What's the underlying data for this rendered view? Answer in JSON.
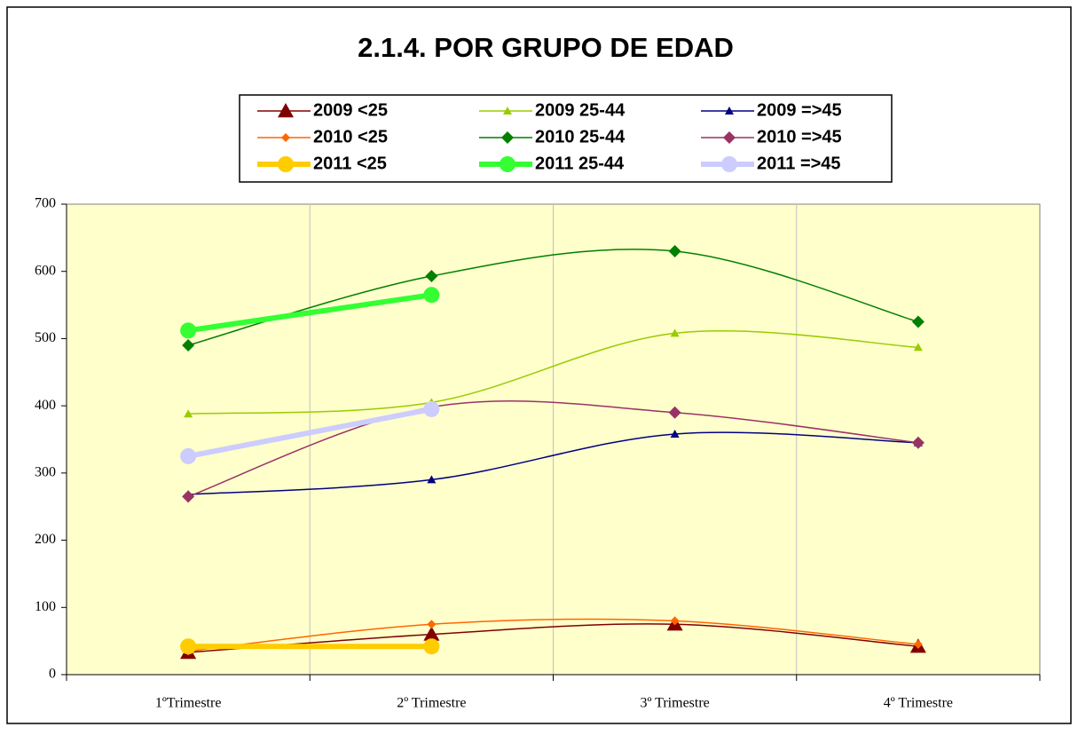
{
  "chart_data": {
    "type": "line",
    "title": "2.1.4. POR GRUPO DE EDAD",
    "categories": [
      "1ºTrimestre",
      "2º Trimestre",
      "3º Trimestre",
      "4º Trimestre"
    ],
    "series": [
      {
        "name": "2009 <25",
        "color": "#800000",
        "marker": "triangle",
        "values": [
          33,
          60,
          75,
          42
        ]
      },
      {
        "name": "2009 25-44",
        "color": "#99cc00",
        "marker": "small-triangle",
        "values": [
          388,
          405,
          508,
          487
        ]
      },
      {
        "name": "2009 =>45",
        "color": "#000080",
        "marker": "small-triangle",
        "values": [
          268,
          290,
          358,
          345
        ]
      },
      {
        "name": "2010 <25",
        "color": "#ff6600",
        "marker": "small-diamond",
        "values": [
          35,
          75,
          80,
          45
        ]
      },
      {
        "name": "2010 25-44",
        "color": "#008000",
        "marker": "diamond",
        "values": [
          490,
          593,
          630,
          525
        ]
      },
      {
        "name": "2010 =>45",
        "color": "#993366",
        "marker": "diamond",
        "values": [
          265,
          398,
          390,
          345
        ]
      },
      {
        "name": "2011 <25",
        "color": "#ffcc00",
        "marker": "circle",
        "line_width": 6,
        "values": [
          42,
          42,
          null,
          null
        ]
      },
      {
        "name": "2011 25-44",
        "color": "#33ff33",
        "marker": "circle",
        "line_width": 6,
        "values": [
          512,
          565,
          null,
          null
        ]
      },
      {
        "name": "2011 =>45",
        "color": "#ccccff",
        "marker": "circle",
        "line_width": 6,
        "values": [
          325,
          395,
          null,
          null
        ]
      }
    ],
    "ylim": [
      0,
      700
    ],
    "yticks": [
      0,
      100,
      200,
      300,
      400,
      500,
      600,
      700
    ],
    "grid": "x",
    "smooth": true,
    "legend": "top",
    "plot_background": "#ffffcc"
  }
}
